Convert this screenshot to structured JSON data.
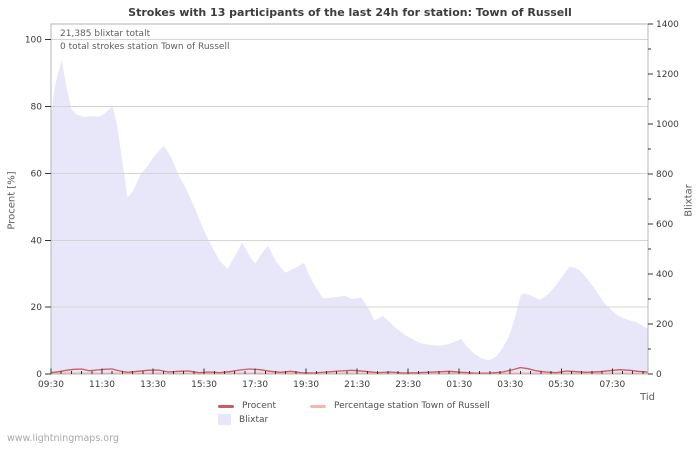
{
  "title": "Strokes with 13 participants of the last 24h for station: Town of Russell",
  "watermark": "www.lightningmaps.org",
  "annotations": {
    "total_blixtar": "21,385 blixtar totalt",
    "station_total": "0 total strokes station Town of Russell"
  },
  "legend": {
    "procent_label": "Procent",
    "station_label": "Percentage station Town of Russell",
    "blixtar_label": "Blixtar"
  },
  "axis_titles": {
    "left": "Procent  [%]",
    "right": "Blixtar",
    "x": "Tid"
  },
  "colors": {
    "area_fill": "#e7e7f9",
    "procent_line": "#cd5b60",
    "station_line": "#f4b6b2",
    "grid": "#d4d4d4",
    "border": "#b5b5b5",
    "tick": "#333333",
    "tick_label": "#3a3a3a"
  },
  "chart_data": {
    "type": "area",
    "title": "Strokes with 13 participants of the last 24h for station: Town of Russell",
    "x_axis": {
      "label": "Tid",
      "tick_labels": [
        "09:30",
        "11:30",
        "13:30",
        "15:30",
        "17:30",
        "19:30",
        "21:30",
        "23:30",
        "01:30",
        "03:30",
        "05:30",
        "07:30"
      ],
      "tick_hours": [
        0,
        2,
        4,
        6,
        8,
        10,
        12,
        14,
        16,
        18,
        20,
        22
      ],
      "minor_step_hours": 0.4,
      "range_hours": [
        0,
        23.4
      ]
    },
    "y_left": {
      "label": "Procent [%]",
      "ticks": [
        0,
        20,
        40,
        60,
        80,
        100
      ],
      "range": [
        0,
        104.7
      ]
    },
    "y_right": {
      "label": "Blixtar",
      "ticks": [
        0,
        200,
        400,
        600,
        800,
        1000,
        1200,
        1400
      ],
      "minor_step": 100,
      "range": [
        0,
        1400
      ]
    },
    "total_blixtar": 21385,
    "station_total_strokes": 0,
    "series": [
      {
        "name": "Blixtar",
        "kind": "area",
        "axis": "right",
        "points": [
          [
            0,
            1035
          ],
          [
            0.15,
            1150
          ],
          [
            0.42,
            1257
          ],
          [
            0.6,
            1150
          ],
          [
            0.8,
            1060
          ],
          [
            1.0,
            1038
          ],
          [
            1.3,
            1028
          ],
          [
            1.6,
            1032
          ],
          [
            1.9,
            1030
          ],
          [
            2.1,
            1042
          ],
          [
            2.42,
            1072
          ],
          [
            2.6,
            990
          ],
          [
            2.8,
            850
          ],
          [
            3.0,
            705
          ],
          [
            3.2,
            730
          ],
          [
            3.5,
            795
          ],
          [
            3.8,
            835
          ],
          [
            4.1,
            878
          ],
          [
            4.42,
            913
          ],
          [
            4.7,
            870
          ],
          [
            5.0,
            795
          ],
          [
            5.3,
            740
          ],
          [
            5.6,
            672
          ],
          [
            6.0,
            573
          ],
          [
            6.3,
            510
          ],
          [
            6.6,
            455
          ],
          [
            6.92,
            420
          ],
          [
            7.2,
            470
          ],
          [
            7.5,
            525
          ],
          [
            7.75,
            478
          ],
          [
            8.0,
            441
          ],
          [
            8.25,
            480
          ],
          [
            8.5,
            513
          ],
          [
            8.8,
            455
          ],
          [
            9.17,
            405
          ],
          [
            9.5,
            420
          ],
          [
            9.92,
            445
          ],
          [
            10.1,
            400
          ],
          [
            10.3,
            360
          ],
          [
            10.67,
            302
          ],
          [
            11.0,
            305
          ],
          [
            11.3,
            310
          ],
          [
            11.5,
            313
          ],
          [
            11.8,
            300
          ],
          [
            12.17,
            305
          ],
          [
            12.45,
            262
          ],
          [
            12.67,
            215
          ],
          [
            12.85,
            222
          ],
          [
            13.0,
            233
          ],
          [
            13.25,
            210
          ],
          [
            13.5,
            185
          ],
          [
            13.9,
            155
          ],
          [
            14.42,
            125
          ],
          [
            14.9,
            116
          ],
          [
            15.25,
            113
          ],
          [
            15.6,
            120
          ],
          [
            15.9,
            132
          ],
          [
            16.08,
            141
          ],
          [
            16.3,
            110
          ],
          [
            16.6,
            80
          ],
          [
            16.9,
            62
          ],
          [
            17.17,
            55
          ],
          [
            17.45,
            70
          ],
          [
            17.67,
            100
          ],
          [
            17.95,
            150
          ],
          [
            18.2,
            230
          ],
          [
            18.42,
            317
          ],
          [
            18.6,
            322
          ],
          [
            18.9,
            310
          ],
          [
            19.17,
            297
          ],
          [
            19.5,
            320
          ],
          [
            19.83,
            360
          ],
          [
            20.1,
            400
          ],
          [
            20.33,
            430
          ],
          [
            20.5,
            425
          ],
          [
            20.67,
            418
          ],
          [
            20.9,
            395
          ],
          [
            21.17,
            360
          ],
          [
            21.45,
            320
          ],
          [
            21.67,
            285
          ],
          [
            22.0,
            253
          ],
          [
            22.2,
            235
          ],
          [
            22.42,
            225
          ],
          [
            22.7,
            213
          ],
          [
            22.9,
            210
          ],
          [
            23.1,
            198
          ],
          [
            23.4,
            180
          ]
        ]
      },
      {
        "name": "Procent",
        "kind": "line",
        "axis": "left",
        "points": [
          [
            0,
            0.4
          ],
          [
            0.3,
            0.7
          ],
          [
            0.6,
            1.1
          ],
          [
            0.9,
            1.4
          ],
          [
            1.2,
            1.5
          ],
          [
            1.5,
            1.0
          ],
          [
            1.8,
            1.2
          ],
          [
            2.1,
            1.4
          ],
          [
            2.4,
            1.5
          ],
          [
            2.7,
            0.9
          ],
          [
            3.0,
            0.5
          ],
          [
            3.4,
            0.8
          ],
          [
            3.8,
            1.1
          ],
          [
            4.2,
            1.2
          ],
          [
            4.6,
            0.6
          ],
          [
            5.0,
            0.8
          ],
          [
            5.4,
            0.9
          ],
          [
            5.8,
            0.4
          ],
          [
            6.2,
            0.6
          ],
          [
            6.6,
            0.4
          ],
          [
            7.0,
            0.7
          ],
          [
            7.4,
            1.2
          ],
          [
            7.8,
            1.5
          ],
          [
            8.2,
            1.3
          ],
          [
            8.6,
            0.8
          ],
          [
            9.0,
            0.5
          ],
          [
            9.4,
            0.8
          ],
          [
            9.8,
            0.4
          ],
          [
            10.3,
            0.3
          ],
          [
            10.8,
            0.6
          ],
          [
            11.3,
            0.9
          ],
          [
            11.8,
            1.1
          ],
          [
            12.3,
            0.8
          ],
          [
            12.8,
            0.4
          ],
          [
            13.3,
            0.6
          ],
          [
            13.8,
            0.3
          ],
          [
            14.4,
            0.4
          ],
          [
            15.0,
            0.6
          ],
          [
            15.6,
            0.8
          ],
          [
            16.1,
            0.5
          ],
          [
            16.6,
            0.3
          ],
          [
            17.2,
            0.2
          ],
          [
            17.7,
            0.6
          ],
          [
            18.1,
            1.3
          ],
          [
            18.4,
            1.9
          ],
          [
            18.7,
            1.6
          ],
          [
            19.0,
            1.0
          ],
          [
            19.4,
            0.6
          ],
          [
            19.8,
            0.4
          ],
          [
            20.2,
            0.9
          ],
          [
            20.6,
            0.7
          ],
          [
            21.0,
            0.5
          ],
          [
            21.5,
            0.7
          ],
          [
            21.9,
            1.0
          ],
          [
            22.3,
            1.3
          ],
          [
            22.7,
            1.1
          ],
          [
            23.0,
            0.8
          ],
          [
            23.4,
            0.6
          ]
        ]
      },
      {
        "name": "Percentage station Town of Russell",
        "kind": "line",
        "axis": "left",
        "points": [
          [
            0,
            0
          ],
          [
            23.4,
            0
          ]
        ]
      }
    ]
  }
}
